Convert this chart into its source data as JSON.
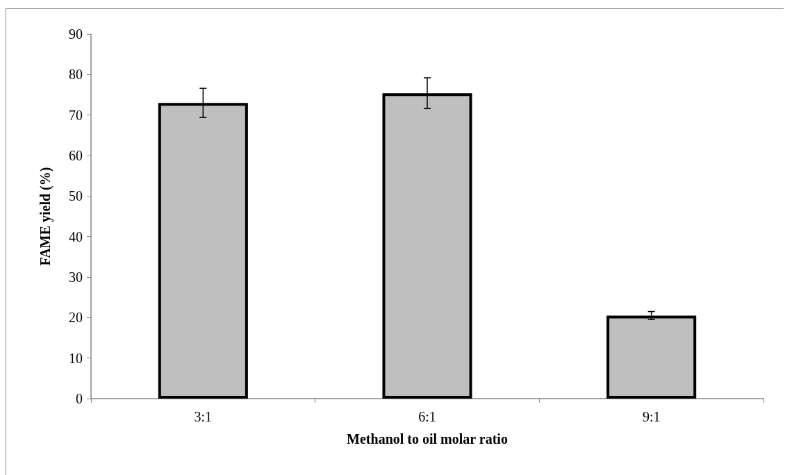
{
  "chart_data": {
    "type": "bar",
    "xlabel": "Methanol to oil molar ratio",
    "ylabel": "FAME yield (%)",
    "categories": [
      "3:1",
      "6:1",
      "9:1"
    ],
    "values": [
      73.0,
      75.4,
      20.5
    ],
    "errors": [
      3.6,
      3.8,
      1.0
    ],
    "color": "#bfbfbf",
    "ylim": [
      0,
      90
    ],
    "yticks": [
      0,
      10,
      20,
      30,
      40,
      50,
      60,
      70,
      80,
      90
    ],
    "grid": false
  }
}
